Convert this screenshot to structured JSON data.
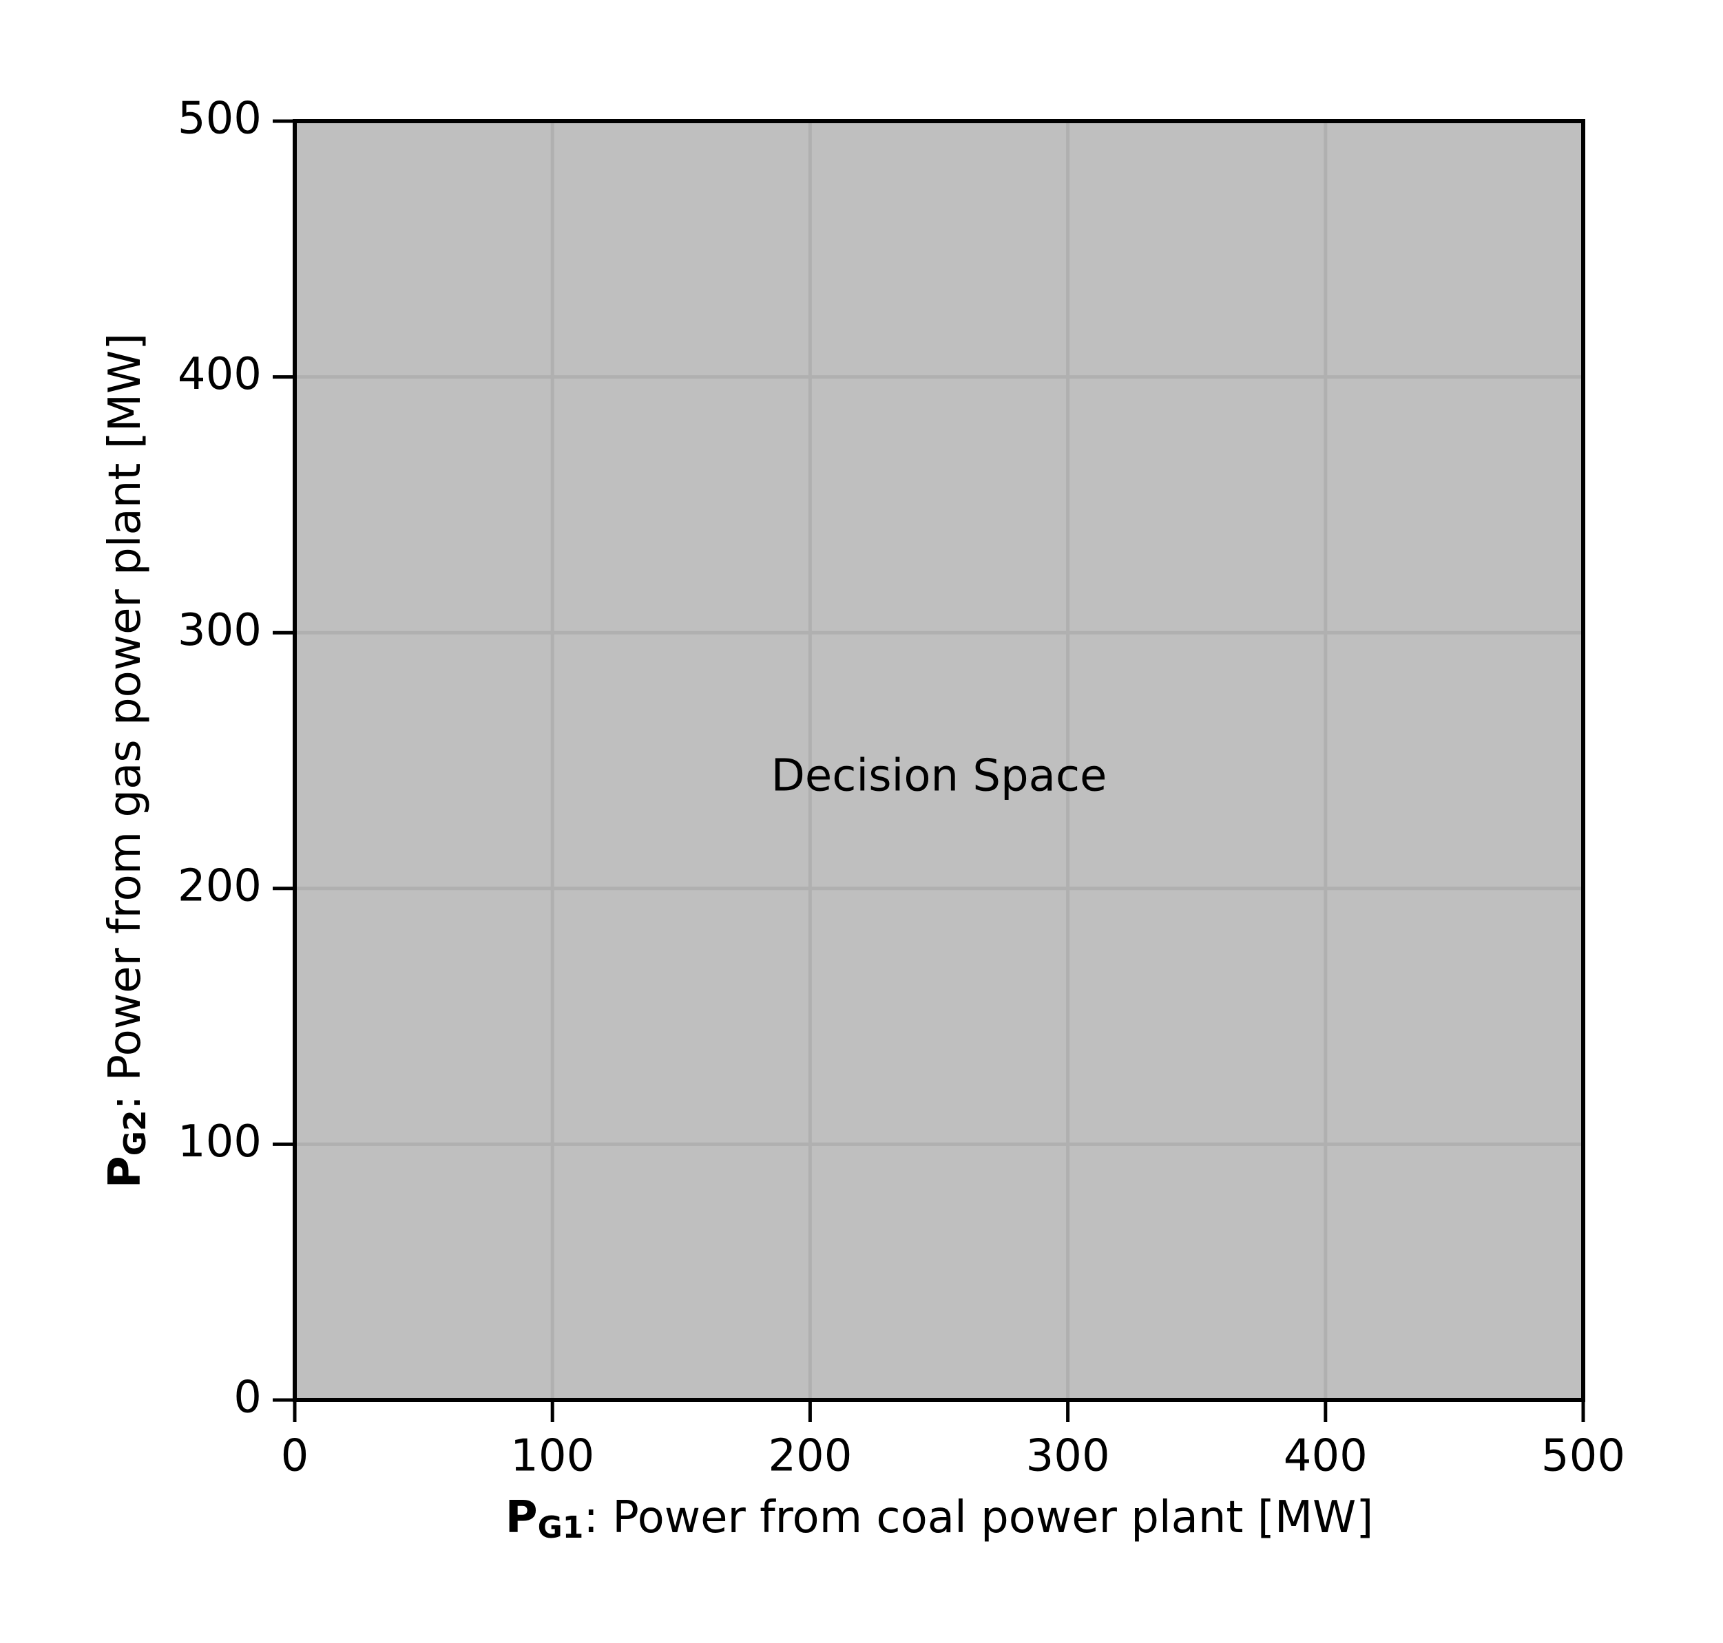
{
  "chart_data": {
    "type": "area",
    "xlabel": {
      "symbol": "P",
      "subscript": "G1",
      "text": ": Power from coal power plant [MW]"
    },
    "ylabel": {
      "symbol": "P",
      "subscript": "G2",
      "text": ": Power from gas power plant [MW]"
    },
    "region": {
      "x": [
        0,
        500,
        500,
        0
      ],
      "y": [
        0,
        0,
        500,
        500
      ],
      "color": "#bfbfbf"
    },
    "annotation": {
      "text": "Decision Space",
      "x": 250,
      "y": 250
    },
    "xlim": [
      0,
      500
    ],
    "ylim": [
      0,
      500
    ],
    "xticks": [
      0,
      100,
      200,
      300,
      400,
      500
    ],
    "yticks": [
      0,
      100,
      200,
      300,
      400,
      500
    ],
    "grid": true
  }
}
